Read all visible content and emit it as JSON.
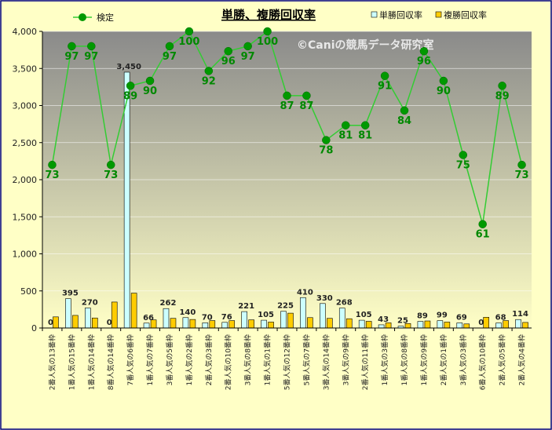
{
  "chart_data": {
    "type": "bar",
    "title": "単勝、複勝回収率",
    "watermark": "©Caniの競馬データ研究室",
    "categories": [
      "2番人気の13番枠",
      "1番人気の15番枠",
      "1番人気の14番枠",
      "8番人気の14番枠",
      "7番人気の6番枠",
      "1番人気の7番枠",
      "3番人気の5番枠",
      "1番人気の2番枠",
      "2番人気の3番枠",
      "2番人気の10番枠",
      "3番人気の8番枠",
      "1番人気の1番枠",
      "5番人気の12番枠",
      "5番人気の7番枠",
      "3番人気の14番枠",
      "3番人気の9番枠",
      "2番人気の11番枠",
      "1番人気の3番枠",
      "1番人気の8番枠",
      "1番人気の9番枠",
      "2番人気の1番枠",
      "3番人気の3番枠",
      "6番人気の10番枠",
      "2番人気の5番枠",
      "2番人気の4番枠"
    ],
    "series": [
      {
        "name": "単勝回収率",
        "values": [
          0,
          395,
          270,
          0,
          3450,
          66,
          262,
          140,
          70,
          76,
          221,
          105,
          225,
          410,
          330,
          268,
          105,
          43,
          25,
          89,
          99,
          69,
          0,
          68,
          114
        ],
        "color": "#ccffff"
      },
      {
        "name": "複勝回収率",
        "values": [
          150,
          170,
          135,
          350,
          470,
          110,
          130,
          115,
          100,
          100,
          110,
          80,
          200,
          140,
          130,
          125,
          90,
          70,
          60,
          95,
          80,
          55,
          145,
          100,
          75
        ],
        "color": "#ffcc00"
      }
    ],
    "bar_labels": [
      "0",
      "395",
      "270",
      "0",
      "3,450",
      "66",
      "262",
      "140",
      "70",
      "76",
      "221",
      "105",
      "225",
      "410",
      "330",
      "268",
      "105",
      "43",
      "25",
      "89",
      "99",
      "69",
      "0",
      "68",
      "114"
    ],
    "line_series": {
      "name": "検定",
      "values": [
        73,
        97,
        97,
        73,
        89,
        90,
        97,
        100,
        92,
        96,
        97,
        100,
        87,
        87,
        78,
        81,
        81,
        91,
        84,
        96,
        90,
        75,
        61,
        89,
        73
      ],
      "color": "#33cc33"
    },
    "ylim": [
      0,
      4000
    ],
    "yticks": [
      "0",
      "500",
      "1,000",
      "1,500",
      "2,000",
      "2,500",
      "3,000",
      "3,500",
      "4,000"
    ],
    "line_scale": [
      40,
      100
    ],
    "grid": true,
    "legend_placement": "top",
    "colors": {
      "background": "#ffffc6",
      "plot_top": "#888888",
      "plot_bottom": "#ffffc6",
      "border": "#000080"
    }
  }
}
